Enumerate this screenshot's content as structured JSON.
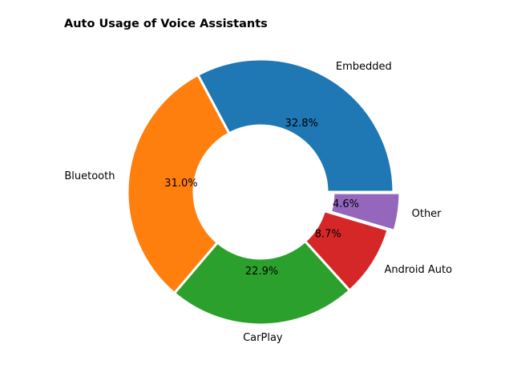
{
  "chart_data": {
    "type": "pie",
    "title": "Auto Usage of Voice Assistants",
    "donut": true,
    "slices": [
      {
        "label": "Embedded",
        "value": 32.8,
        "pct_label": "32.8%",
        "color": "#1f77b4",
        "explode": false
      },
      {
        "label": "Bluetooth",
        "value": 31.0,
        "pct_label": "31.0%",
        "color": "#ff7f0e",
        "explode": false
      },
      {
        "label": "CarPlay",
        "value": 22.9,
        "pct_label": "22.9%",
        "color": "#2ca02c",
        "explode": false
      },
      {
        "label": "Android Auto",
        "value": 8.7,
        "pct_label": "8.7%",
        "color": "#d62728",
        "explode": false
      },
      {
        "label": "Other",
        "value": 4.6,
        "pct_label": "4.6%",
        "color": "#9467bd",
        "explode": true
      }
    ],
    "start_angle_deg": 0,
    "direction": "counterclockwise",
    "legend": "none",
    "edge_color": "#ffffff"
  }
}
